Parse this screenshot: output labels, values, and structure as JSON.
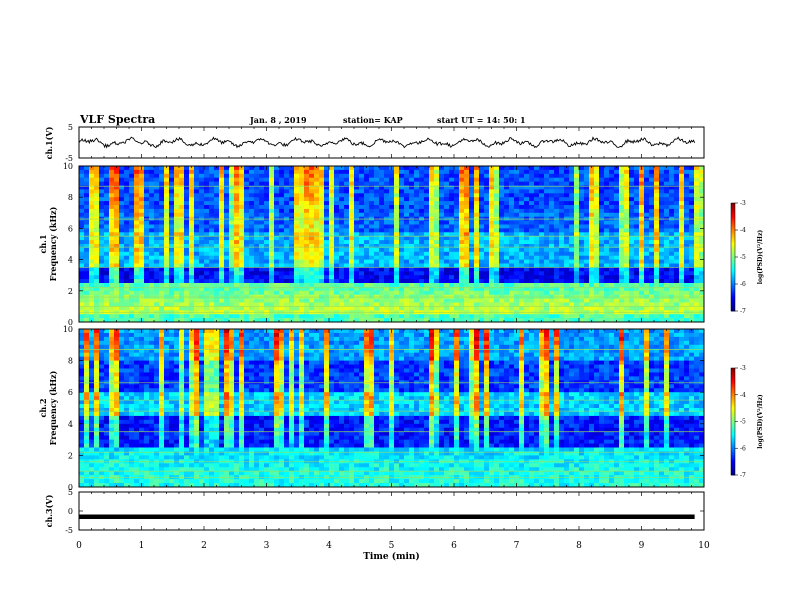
{
  "header": {
    "title": "VLF Spectra",
    "date": "Jan. 8 , 2019",
    "station": "station= KAP",
    "start": "start UT = 14: 50: 1"
  },
  "chart_data": [
    {
      "type": "line",
      "panel": "ch1-waveform",
      "ylabel": "ch.1(V)",
      "ylim": [
        -5,
        5
      ],
      "yticks": [
        "5",
        "-5"
      ],
      "xlim": [
        0,
        10
      ],
      "approx_center": 0,
      "approx_amplitude": 1
    },
    {
      "type": "heatmap",
      "panel": "ch1-spectrogram",
      "ylabel": "ch.1 Frequency (kHz)",
      "ylim": [
        0,
        10
      ],
      "yticks": [
        "0",
        "2",
        "4",
        "6",
        "8",
        "10"
      ],
      "xlim": [
        0,
        10
      ],
      "colorbar": {
        "label": "log(PSD)(V²/Hz)",
        "range": [
          -7,
          -3
        ],
        "ticks": [
          "-3",
          "-4",
          "-5",
          "-6",
          "-7"
        ]
      }
    },
    {
      "type": "heatmap",
      "panel": "ch2-spectrogram",
      "ylabel": "ch.2 Frequency (kHz)",
      "ylim": [
        0,
        10
      ],
      "yticks": [
        "0",
        "2",
        "4",
        "6",
        "8",
        "10"
      ],
      "xlim": [
        0,
        10
      ],
      "colorbar": {
        "label": "log(PSD)(V²/Hz)",
        "range": [
          -7,
          -3
        ],
        "ticks": [
          "-3",
          "-4",
          "-5",
          "-6",
          "-7"
        ]
      }
    },
    {
      "type": "line",
      "panel": "ch3-waveform",
      "ylabel": "ch.3(V)",
      "ylim": [
        -5,
        5
      ],
      "yticks": [
        "5",
        "0",
        "-5"
      ],
      "xlim": [
        0,
        10
      ],
      "approx_value": -1.5
    }
  ],
  "xaxis": {
    "label": "Time (min)",
    "ticks": [
      "0",
      "1",
      "2",
      "3",
      "4",
      "5",
      "6",
      "7",
      "8",
      "9",
      "10"
    ]
  }
}
